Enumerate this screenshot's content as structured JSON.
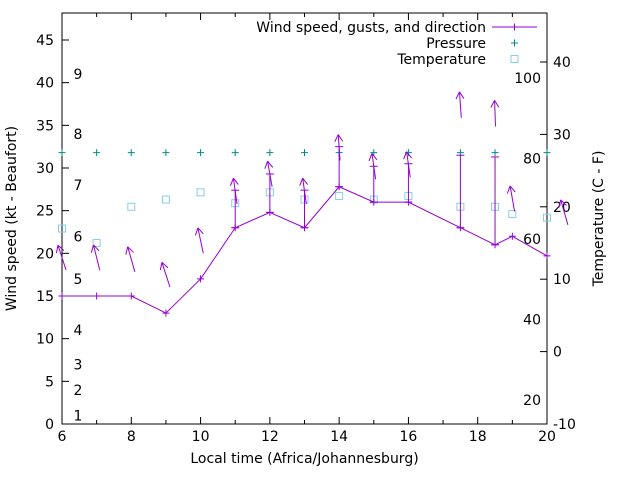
{
  "page": {
    "background": "#ffffff"
  },
  "colors": {
    "wind": "#9400d3",
    "pressure": "#008b8b",
    "temperature": "#87ceeb",
    "axis": "#000000"
  },
  "legend": [
    {
      "id": "wind",
      "label": "Wind speed, gusts, and direction"
    },
    {
      "id": "pressure",
      "label": "Pressure"
    },
    {
      "id": "temperature",
      "label": "Temperature"
    }
  ],
  "axes": {
    "x": {
      "title": "Local time (Africa/Johannesburg)",
      "min": 6,
      "max": 20,
      "major_ticks": [
        6,
        8,
        10,
        12,
        14,
        16,
        18,
        20
      ],
      "minor_ticks": [
        7,
        9,
        11,
        13,
        15,
        17,
        19
      ]
    },
    "y_left": {
      "title": "Wind speed (kt - Beaufort)",
      "min": 0,
      "max": 45,
      "ticks": [
        0,
        5,
        10,
        15,
        20,
        25,
        30,
        35,
        40,
        45
      ],
      "beaufort_scale": [
        {
          "label": "1",
          "kt": 1
        },
        {
          "label": "2",
          "kt": 4
        },
        {
          "label": "3",
          "kt": 7
        },
        {
          "label": "4",
          "kt": 11
        },
        {
          "label": "5",
          "kt": 17
        },
        {
          "label": "6",
          "kt": 22
        },
        {
          "label": "7",
          "kt": 28
        },
        {
          "label": "8",
          "kt": 34
        },
        {
          "label": "9",
          "kt": 41
        }
      ]
    },
    "y_right": {
      "title": "Temperature (C - F)",
      "celsius_ticks": [
        -10,
        0,
        10,
        20,
        30,
        40
      ],
      "fahrenheit_labels": [
        20,
        40,
        60,
        80,
        100
      ]
    }
  },
  "chart_data": {
    "type": "line",
    "title": "",
    "xlabel": "Local time (Africa/Johannesburg)",
    "ylabel_left": "Wind speed (kt - Beaufort)",
    "ylabel_right": "Temperature (C - F)",
    "grid": false,
    "legend_position": "top-right-inside",
    "ylim_left": [
      0,
      47
    ],
    "ylim_right_c": [
      -10,
      40
    ],
    "x_hours": [
      6,
      7,
      8,
      9,
      10,
      11,
      12,
      13,
      14,
      15,
      16,
      17.5,
      18.5,
      19,
      20
    ],
    "series": [
      {
        "name": "Wind speed, gusts, and direction",
        "type": "line+errorbars+direction-arrows",
        "axis": "left",
        "units": "kt",
        "wind_kt": [
          15,
          15,
          15,
          13,
          17,
          23,
          24.8,
          23,
          27.8,
          26,
          26,
          23,
          21,
          22,
          19.7
        ],
        "gust_kt": [
          null,
          null,
          null,
          null,
          null,
          27.4,
          29.3,
          27.4,
          32.5,
          30.2,
          30.5,
          31.5,
          31.3,
          null,
          null
        ],
        "direction_arrows": [
          {
            "t": 6,
            "kt": 19.5,
            "angle": -18
          },
          {
            "t": 7,
            "kt": 19.5,
            "angle": -14
          },
          {
            "t": 8,
            "kt": 19.3,
            "angle": -16
          },
          {
            "t": 9,
            "kt": 17.5,
            "angle": -18
          },
          {
            "t": 10,
            "kt": 21.5,
            "angle": -12
          },
          {
            "t": 11,
            "kt": 27.3,
            "angle": -8
          },
          {
            "t": 12,
            "kt": 29.3,
            "angle": -10
          },
          {
            "t": 13,
            "kt": 27.3,
            "angle": -8
          },
          {
            "t": 14,
            "kt": 32.4,
            "angle": -4
          },
          {
            "t": 15,
            "kt": 30.2,
            "angle": -8
          },
          {
            "t": 16,
            "kt": 30.4,
            "angle": -8
          },
          {
            "t": 17.5,
            "kt": 37.4,
            "angle": -4
          },
          {
            "t": 18.5,
            "kt": 36.4,
            "angle": -2
          },
          {
            "t": 19,
            "kt": 26.4,
            "angle": -10
          },
          {
            "t": 20.5,
            "kt": 24.8,
            "angle": -16
          }
        ]
      },
      {
        "name": "Pressure",
        "type": "points",
        "marker": "plus",
        "axis": "left-equivalent",
        "plotted_level_kt": [
          31.8,
          31.8,
          31.8,
          31.8,
          31.8,
          31.8,
          31.8,
          31.8,
          31.8,
          31.8,
          31.8,
          31.8,
          31.8,
          null,
          31.8
        ]
      },
      {
        "name": "Temperature",
        "type": "points",
        "marker": "open-square",
        "axis": "right",
        "units": "C",
        "values_c": [
          17,
          15,
          20,
          21,
          22,
          20.5,
          22,
          21,
          21.5,
          21,
          21.5,
          20,
          20,
          19,
          18.5
        ]
      }
    ]
  }
}
